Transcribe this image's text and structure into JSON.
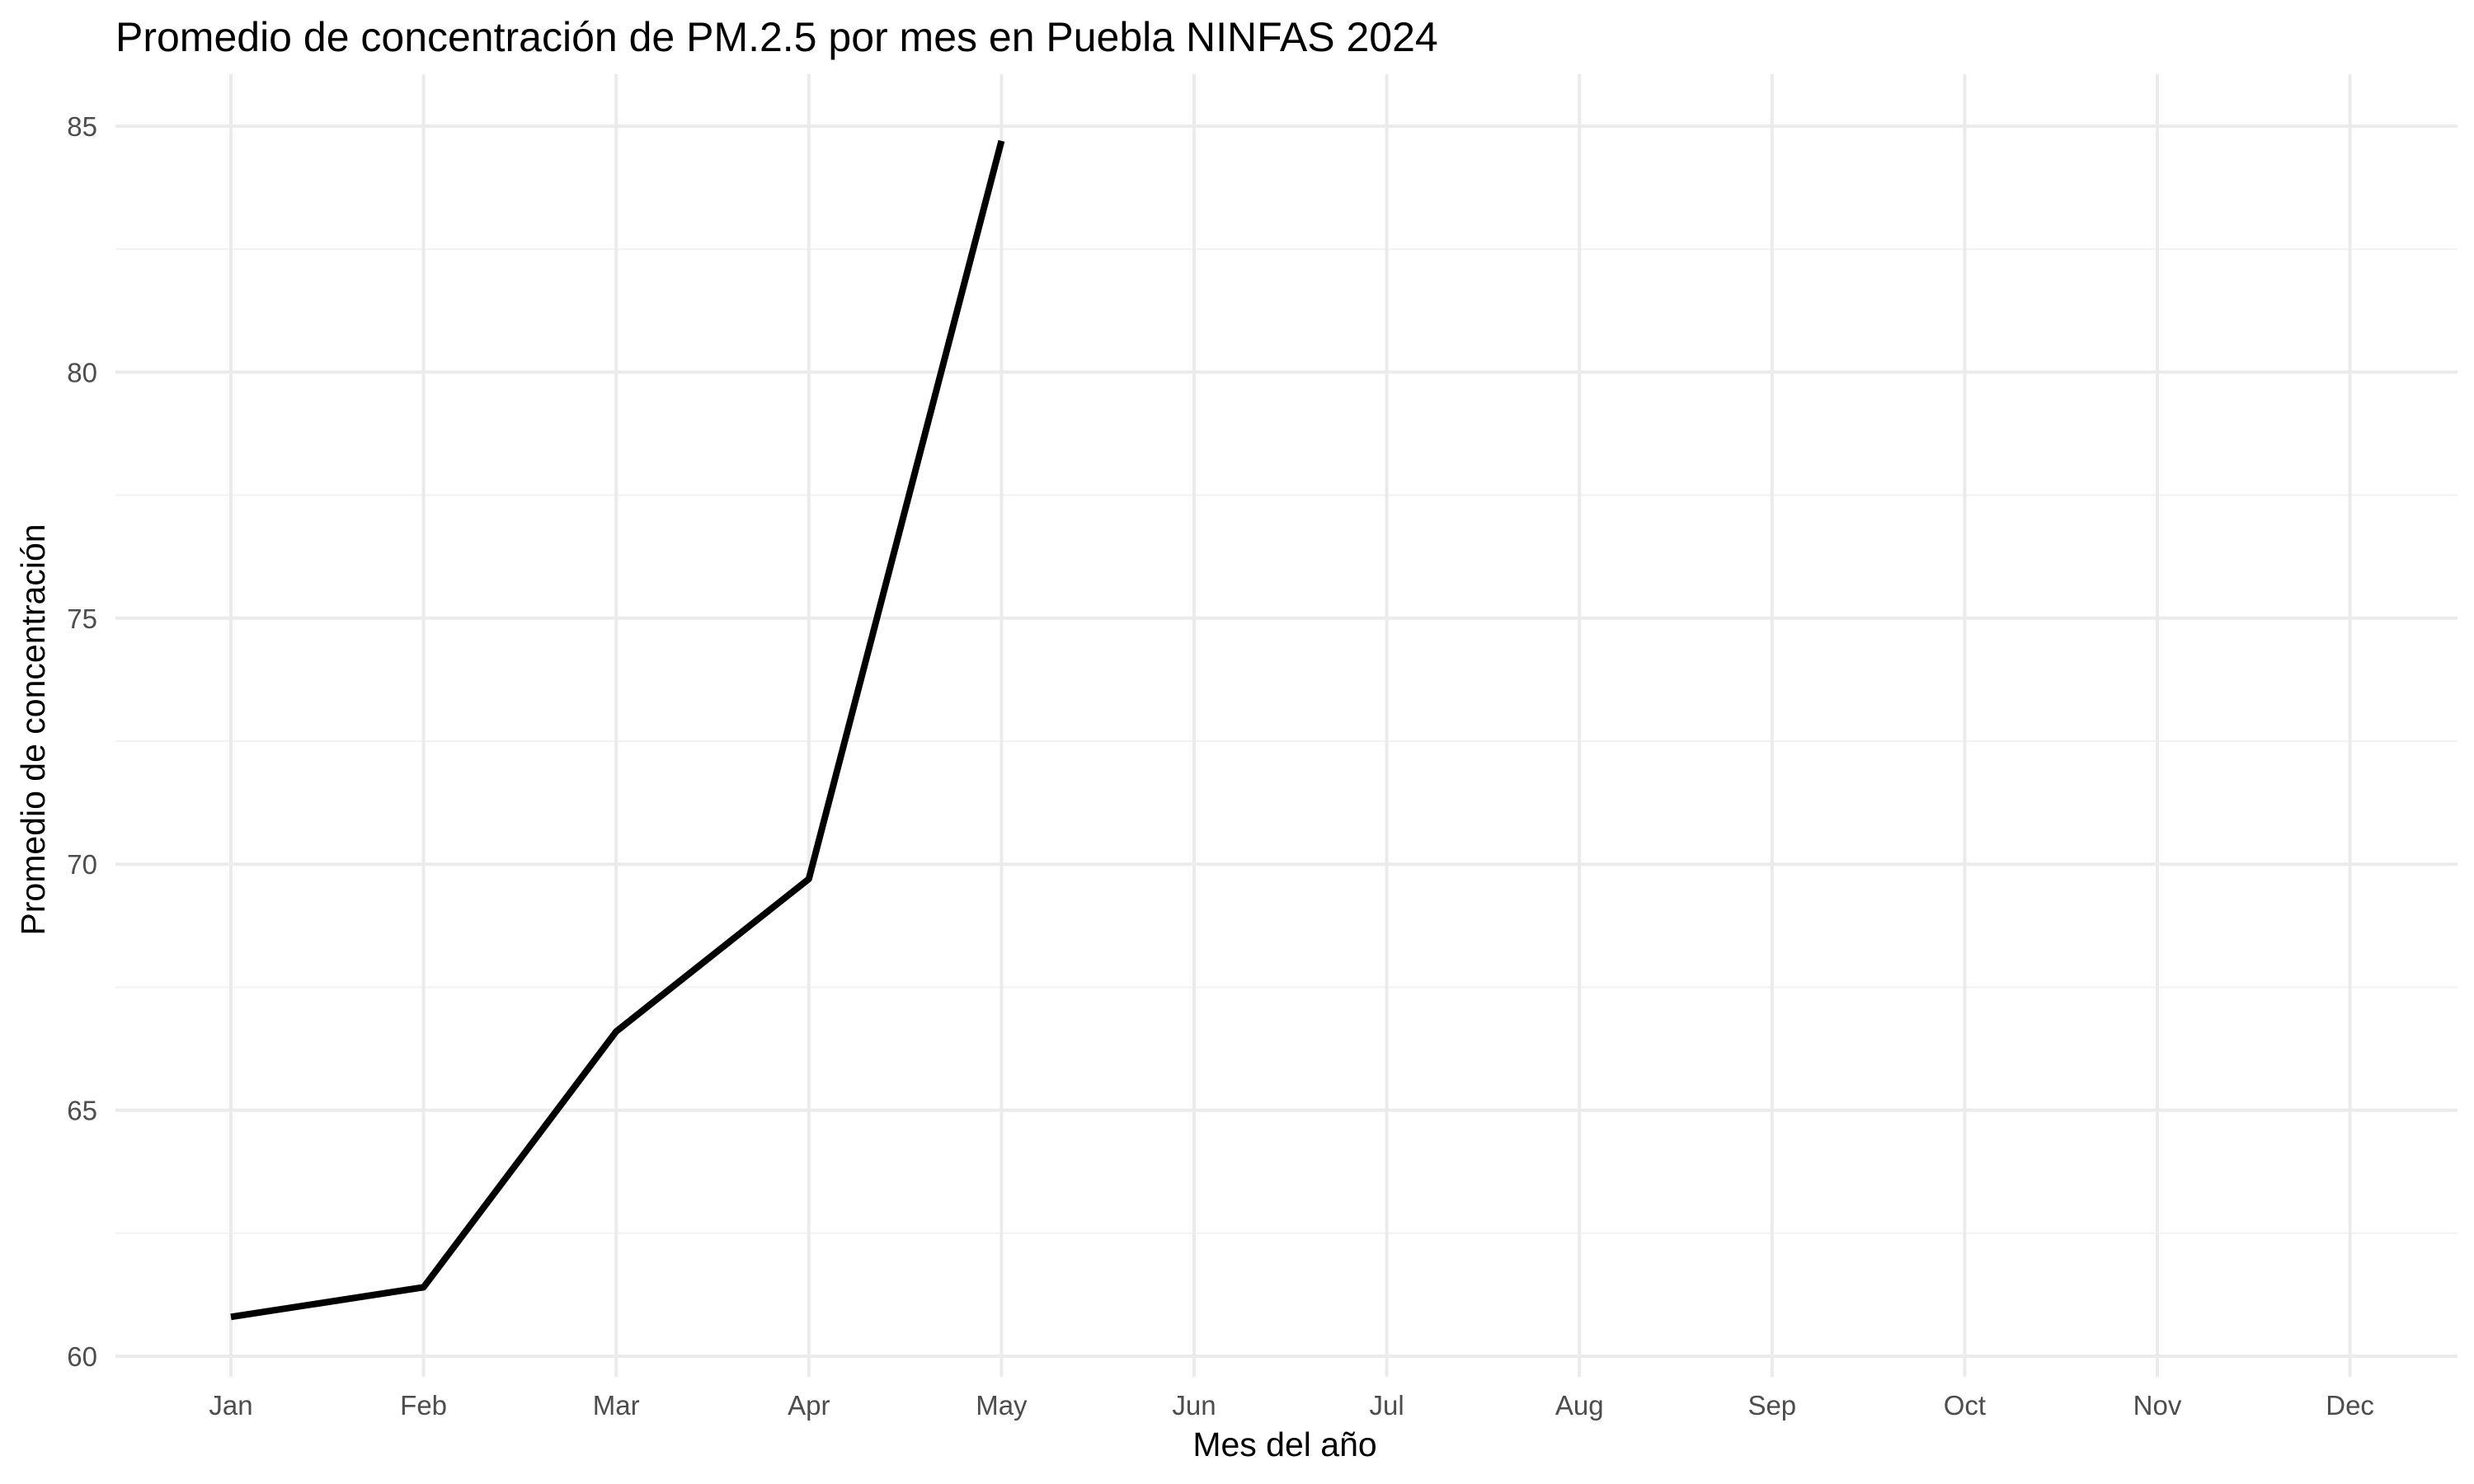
{
  "chart_data": {
    "type": "line",
    "title": "Promedio de concentración de PM.2.5 por mes en Puebla NINFAS 2024",
    "xlabel": "Mes del año",
    "ylabel": "Promedio de concentración",
    "categories": [
      "Jan",
      "Feb",
      "Mar",
      "Apr",
      "May",
      "Jun",
      "Jul",
      "Aug",
      "Sep",
      "Oct",
      "Nov",
      "Dec"
    ],
    "series": [
      {
        "values": [
          60.8,
          61.4,
          66.6,
          69.7,
          84.7,
          null,
          null,
          null,
          null,
          null,
          null,
          null
        ],
        "color": "#000000"
      }
    ],
    "y_ticks": [
      60,
      65,
      70,
      75,
      80,
      85
    ],
    "ylim": [
      59.65,
      85.5
    ],
    "grid": true,
    "legend": "none"
  }
}
